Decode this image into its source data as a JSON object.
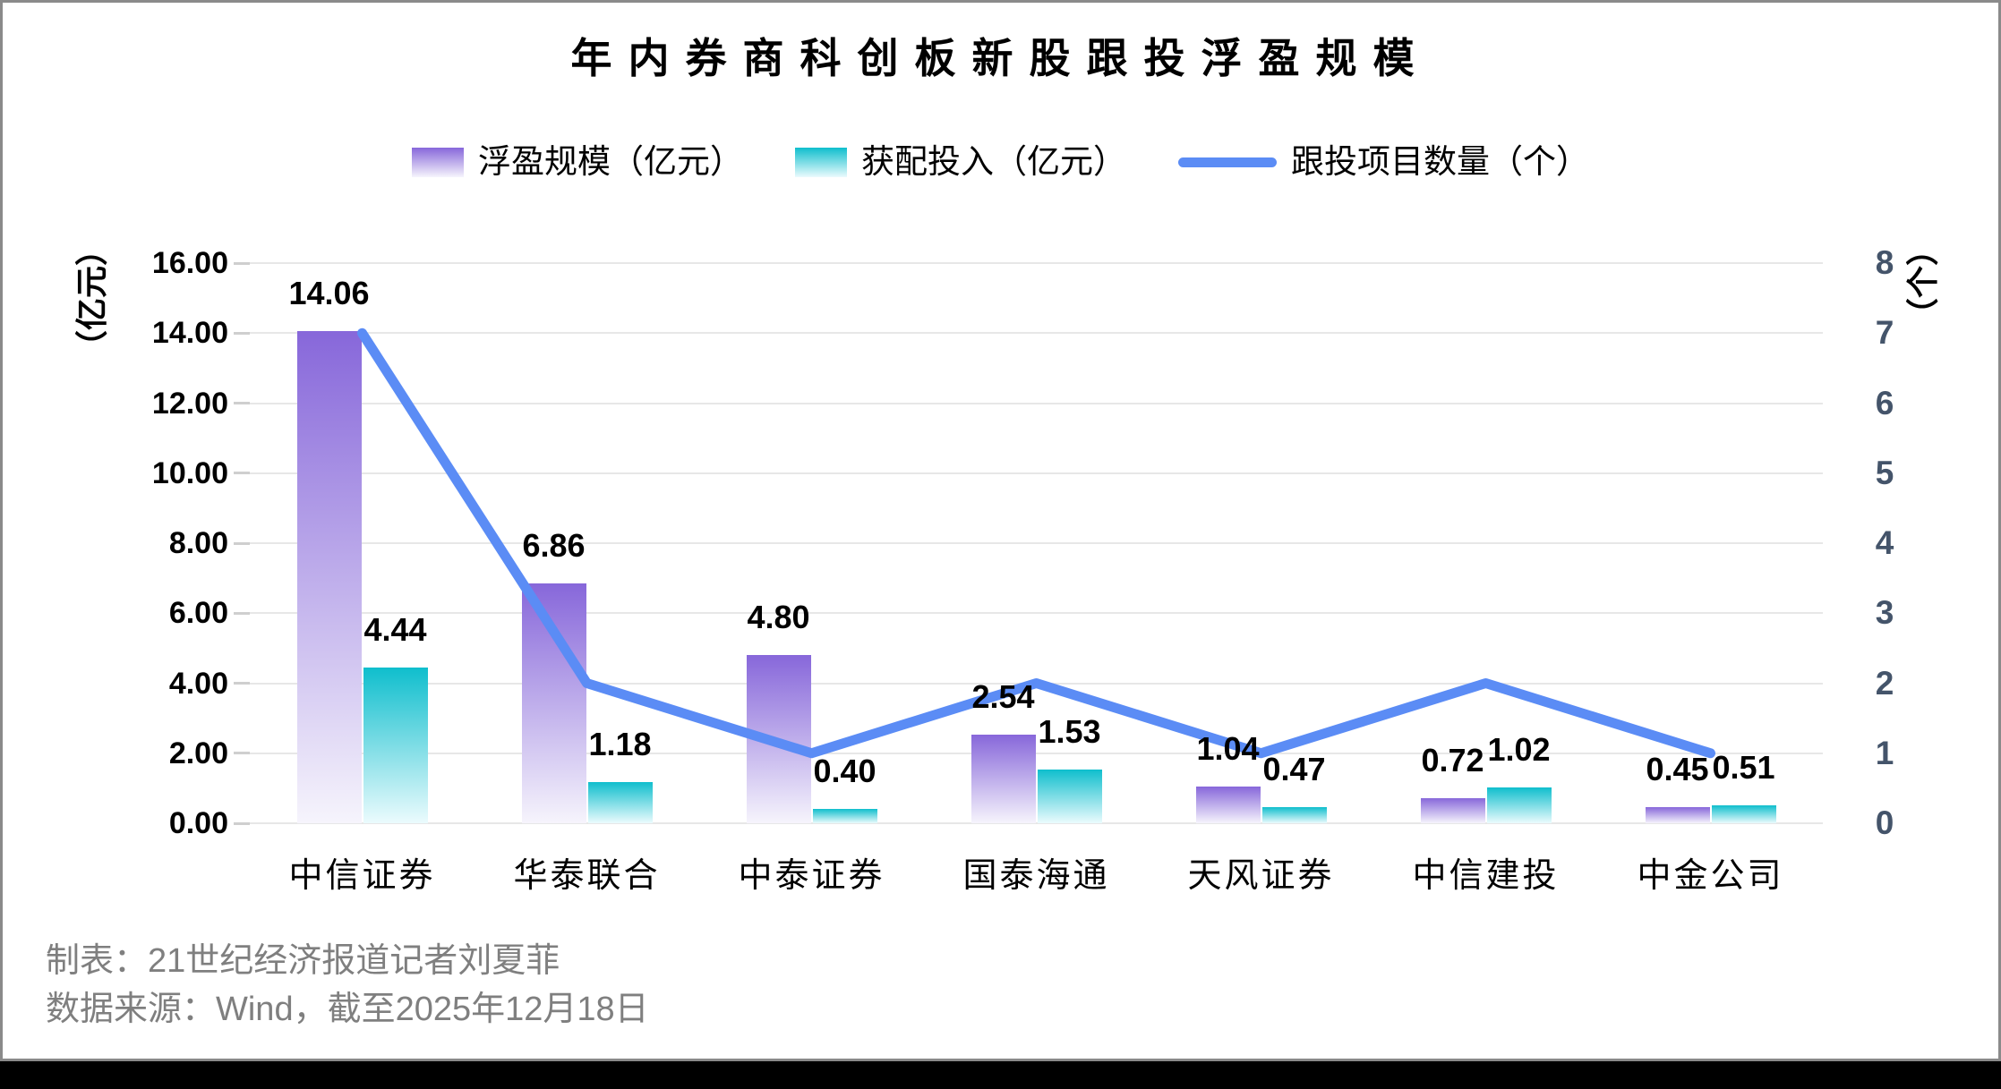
{
  "title": "年内券商科创板新股跟投浮盈规模",
  "footer": {
    "line1": "制表：21世纪经济报道记者刘夏菲",
    "line2": "数据来源：Wind，截至2025年12月18日"
  },
  "colors": {
    "purple_top": "#8767DA",
    "purple_bottom": "#F6F4FC",
    "teal_top": "#0FBECD",
    "teal_bottom": "#EBFBFD",
    "line": "#5B8CF5",
    "left_axis_text": "#000000",
    "right_axis_text": "#44546A",
    "grid": "#E7E7E7",
    "tick": "#CFCFCF",
    "footer_text": "#7F7F7F",
    "frame_border": "#8A8A8A",
    "bottom_bar": "#000000"
  },
  "chart_data": {
    "type": "bar+line",
    "title": "年内券商科创板新股跟投浮盈规模",
    "categories": [
      "中信证券",
      "华泰联合",
      "中泰证券",
      "国泰海通",
      "天风证券",
      "中信建投",
      "中金公司"
    ],
    "series": [
      {
        "name": "浮盈规模（亿元）",
        "type": "bar",
        "axis": "left",
        "values": [
          14.06,
          6.86,
          4.8,
          2.54,
          1.04,
          0.72,
          0.45
        ]
      },
      {
        "name": "获配投入（亿元）",
        "type": "bar",
        "axis": "left",
        "values": [
          4.44,
          1.18,
          0.4,
          1.53,
          0.47,
          1.02,
          0.51
        ]
      },
      {
        "name": "跟投项目数量（个）",
        "type": "line",
        "axis": "right",
        "values": [
          7,
          2,
          1,
          2,
          1,
          2,
          1
        ]
      }
    ],
    "axes": {
      "left": {
        "title": "（亿元）",
        "min": 0,
        "max": 16,
        "step": 2,
        "tick_format": "0.00"
      },
      "right": {
        "title": "（个）",
        "min": 0,
        "max": 8,
        "step": 1
      }
    },
    "grid": true,
    "legend_position": "top",
    "value_labels": true
  }
}
